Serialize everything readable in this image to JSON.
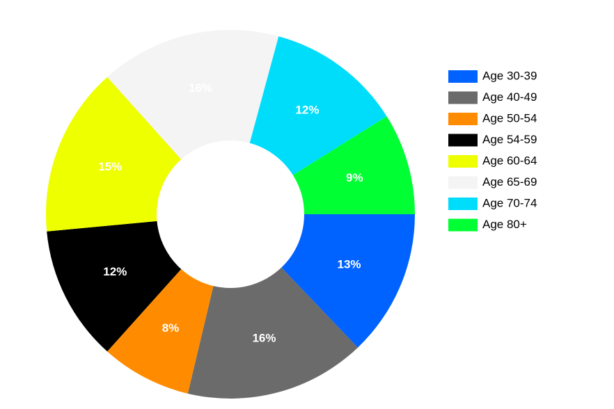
{
  "chart_data": {
    "type": "donut",
    "categories": [
      "Age 30-39",
      "Age 40-49",
      "Age 50-54",
      "Age 54-59",
      "Age 60-64",
      "Age 65-69",
      "Age 70-74",
      "Age 80+"
    ],
    "values": [
      13,
      16,
      8,
      12,
      15,
      16,
      12,
      9
    ],
    "value_labels": [
      "13%",
      "16%",
      "8%",
      "12%",
      "15%",
      "16%",
      "12%",
      "9%"
    ],
    "colors": [
      "#0062ff",
      "#6b6b6b",
      "#ff8c00",
      "#000000",
      "#eeff00",
      "#f4f4f4",
      "#00ddfb",
      "#00ff33"
    ],
    "legend": "right"
  }
}
